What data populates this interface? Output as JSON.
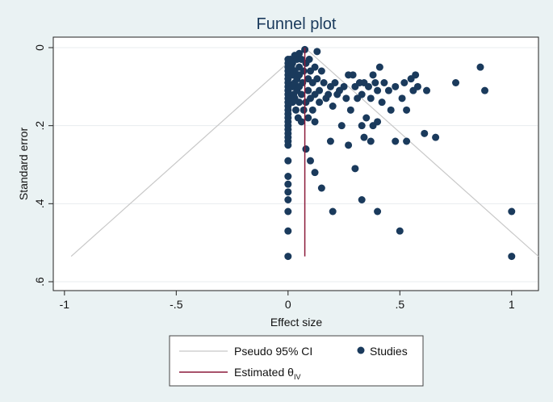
{
  "chart_data": {
    "type": "scatter",
    "title": "Funnel plot",
    "xlabel": "Effect size",
    "ylabel": "Standard error",
    "xlim": [
      -1.05,
      1.12
    ],
    "ylim": [
      0,
      0.6
    ],
    "y_inverted": true,
    "x_ticks": [
      {
        "value": -1,
        "label": "-1"
      },
      {
        "value": -0.5,
        "label": "-.5"
      },
      {
        "value": 0,
        "label": "0"
      },
      {
        "value": 0.5,
        "label": ".5"
      },
      {
        "value": 1,
        "label": "1"
      }
    ],
    "y_ticks": [
      {
        "value": 0,
        "label": "0"
      },
      {
        "value": 0.2,
        "label": ".2"
      },
      {
        "value": 0.4,
        "label": ".4"
      },
      {
        "value": 0.6,
        "label": ".6"
      }
    ],
    "grid": "horizontal",
    "legend": {
      "placement": "bottom",
      "entries": [
        {
          "label": "Pseudo 95% CI",
          "kind": "line",
          "color": "#c8c8c8"
        },
        {
          "label": "Studies",
          "kind": "marker",
          "color": "#1a3a5c"
        },
        {
          "label": "Estimated θ",
          "subscript": "IV",
          "kind": "line",
          "color": "#8b1a3a"
        }
      ]
    },
    "estimate": {
      "value": 0.075,
      "se_range": [
        0,
        0.535
      ]
    },
    "pseudo_ci": {
      "apex": [
        0.075,
        0
      ],
      "bottom_se": 0.535,
      "lower_x": -0.97,
      "upper_x": 1.12
    },
    "colors": {
      "studies": "#1a3a5c",
      "estimate": "#8b1a3a",
      "ci": "#c8c8c8",
      "grid": "#e8ecef"
    },
    "series": [
      {
        "name": "Studies",
        "points": [
          [
            0,
            0.03
          ],
          [
            0,
            0.04
          ],
          [
            0,
            0.05
          ],
          [
            0,
            0.06
          ],
          [
            0,
            0.07
          ],
          [
            0,
            0.08
          ],
          [
            0,
            0.09
          ],
          [
            0,
            0.1
          ],
          [
            0,
            0.11
          ],
          [
            0,
            0.12
          ],
          [
            0,
            0.13
          ],
          [
            0,
            0.14
          ],
          [
            0,
            0.15
          ],
          [
            0,
            0.16
          ],
          [
            0,
            0.17
          ],
          [
            0,
            0.18
          ],
          [
            0,
            0.19
          ],
          [
            0,
            0.2
          ],
          [
            0,
            0.21
          ],
          [
            0,
            0.22
          ],
          [
            0,
            0.23
          ],
          [
            0,
            0.24
          ],
          [
            0,
            0.25
          ],
          [
            0,
            0.29
          ],
          [
            0,
            0.33
          ],
          [
            0,
            0.35
          ],
          [
            0,
            0.37
          ],
          [
            0,
            0.39
          ],
          [
            0,
            0.42
          ],
          [
            0,
            0.47
          ],
          [
            0,
            0.535
          ],
          [
            0.01,
            0.03
          ],
          [
            0.015,
            0.05
          ],
          [
            0.02,
            0.04
          ],
          [
            0.02,
            0.07
          ],
          [
            0.02,
            0.1
          ],
          [
            0.02,
            0.14
          ],
          [
            0.025,
            0.12
          ],
          [
            0.03,
            0.02
          ],
          [
            0.03,
            0.06
          ],
          [
            0.03,
            0.09
          ],
          [
            0.03,
            0.13
          ],
          [
            0.035,
            0.16
          ],
          [
            0.04,
            0.03
          ],
          [
            0.04,
            0.08
          ],
          [
            0.04,
            0.11
          ],
          [
            0.045,
            0.18
          ],
          [
            0.05,
            0.015
          ],
          [
            0.05,
            0.05
          ],
          [
            0.05,
            0.07
          ],
          [
            0.05,
            0.1
          ],
          [
            0.05,
            0.14
          ],
          [
            0.06,
            0.03
          ],
          [
            0.06,
            0.12
          ],
          [
            0.06,
            0.19
          ],
          [
            0.065,
            0.09
          ],
          [
            0.07,
            0.06
          ],
          [
            0.07,
            0.16
          ],
          [
            0.075,
            0.005
          ],
          [
            0.08,
            0.04
          ],
          [
            0.08,
            0.14
          ],
          [
            0.08,
            0.26
          ],
          [
            0.09,
            0.08
          ],
          [
            0.09,
            0.11
          ],
          [
            0.09,
            0.18
          ],
          [
            0.095,
            0.03
          ],
          [
            0.1,
            0.06
          ],
          [
            0.1,
            0.13
          ],
          [
            0.1,
            0.29
          ],
          [
            0.11,
            0.09
          ],
          [
            0.11,
            0.16
          ],
          [
            0.12,
            0.05
          ],
          [
            0.12,
            0.12
          ],
          [
            0.12,
            0.19
          ],
          [
            0.12,
            0.32
          ],
          [
            0.13,
            0.01
          ],
          [
            0.13,
            0.08
          ],
          [
            0.14,
            0.11
          ],
          [
            0.14,
            0.14
          ],
          [
            0.15,
            0.06
          ],
          [
            0.15,
            0.36
          ],
          [
            0.16,
            0.09
          ],
          [
            0.17,
            0.13
          ],
          [
            0.18,
            0.12
          ],
          [
            0.19,
            0.1
          ],
          [
            0.19,
            0.24
          ],
          [
            0.2,
            0.15
          ],
          [
            0.2,
            0.42
          ],
          [
            0.21,
            0.09
          ],
          [
            0.22,
            0.12
          ],
          [
            0.23,
            0.11
          ],
          [
            0.24,
            0.2
          ],
          [
            0.25,
            0.1
          ],
          [
            0.26,
            0.13
          ],
          [
            0.27,
            0.07
          ],
          [
            0.27,
            0.25
          ],
          [
            0.28,
            0.16
          ],
          [
            0.29,
            0.07
          ],
          [
            0.3,
            0.1
          ],
          [
            0.3,
            0.31
          ],
          [
            0.31,
            0.13
          ],
          [
            0.32,
            0.09
          ],
          [
            0.33,
            0.12
          ],
          [
            0.33,
            0.2
          ],
          [
            0.33,
            0.39
          ],
          [
            0.34,
            0.09
          ],
          [
            0.34,
            0.23
          ],
          [
            0.35,
            0.18
          ],
          [
            0.36,
            0.1
          ],
          [
            0.37,
            0.13
          ],
          [
            0.37,
            0.24
          ],
          [
            0.38,
            0.07
          ],
          [
            0.38,
            0.2
          ],
          [
            0.39,
            0.09
          ],
          [
            0.4,
            0.11
          ],
          [
            0.4,
            0.19
          ],
          [
            0.4,
            0.42
          ],
          [
            0.41,
            0.05
          ],
          [
            0.42,
            0.14
          ],
          [
            0.43,
            0.09
          ],
          [
            0.45,
            0.11
          ],
          [
            0.46,
            0.16
          ],
          [
            0.48,
            0.1
          ],
          [
            0.48,
            0.24
          ],
          [
            0.5,
            0.47
          ],
          [
            0.51,
            0.13
          ],
          [
            0.52,
            0.09
          ],
          [
            0.53,
            0.16
          ],
          [
            0.53,
            0.24
          ],
          [
            0.55,
            0.08
          ],
          [
            0.56,
            0.11
          ],
          [
            0.57,
            0.07
          ],
          [
            0.58,
            0.1
          ],
          [
            0.61,
            0.22
          ],
          [
            0.62,
            0.11
          ],
          [
            0.66,
            0.23
          ],
          [
            0.75,
            0.09
          ],
          [
            0.86,
            0.05
          ],
          [
            0.88,
            0.11
          ],
          [
            1.0,
            0.42
          ],
          [
            1.0,
            0.535
          ]
        ]
      }
    ]
  }
}
